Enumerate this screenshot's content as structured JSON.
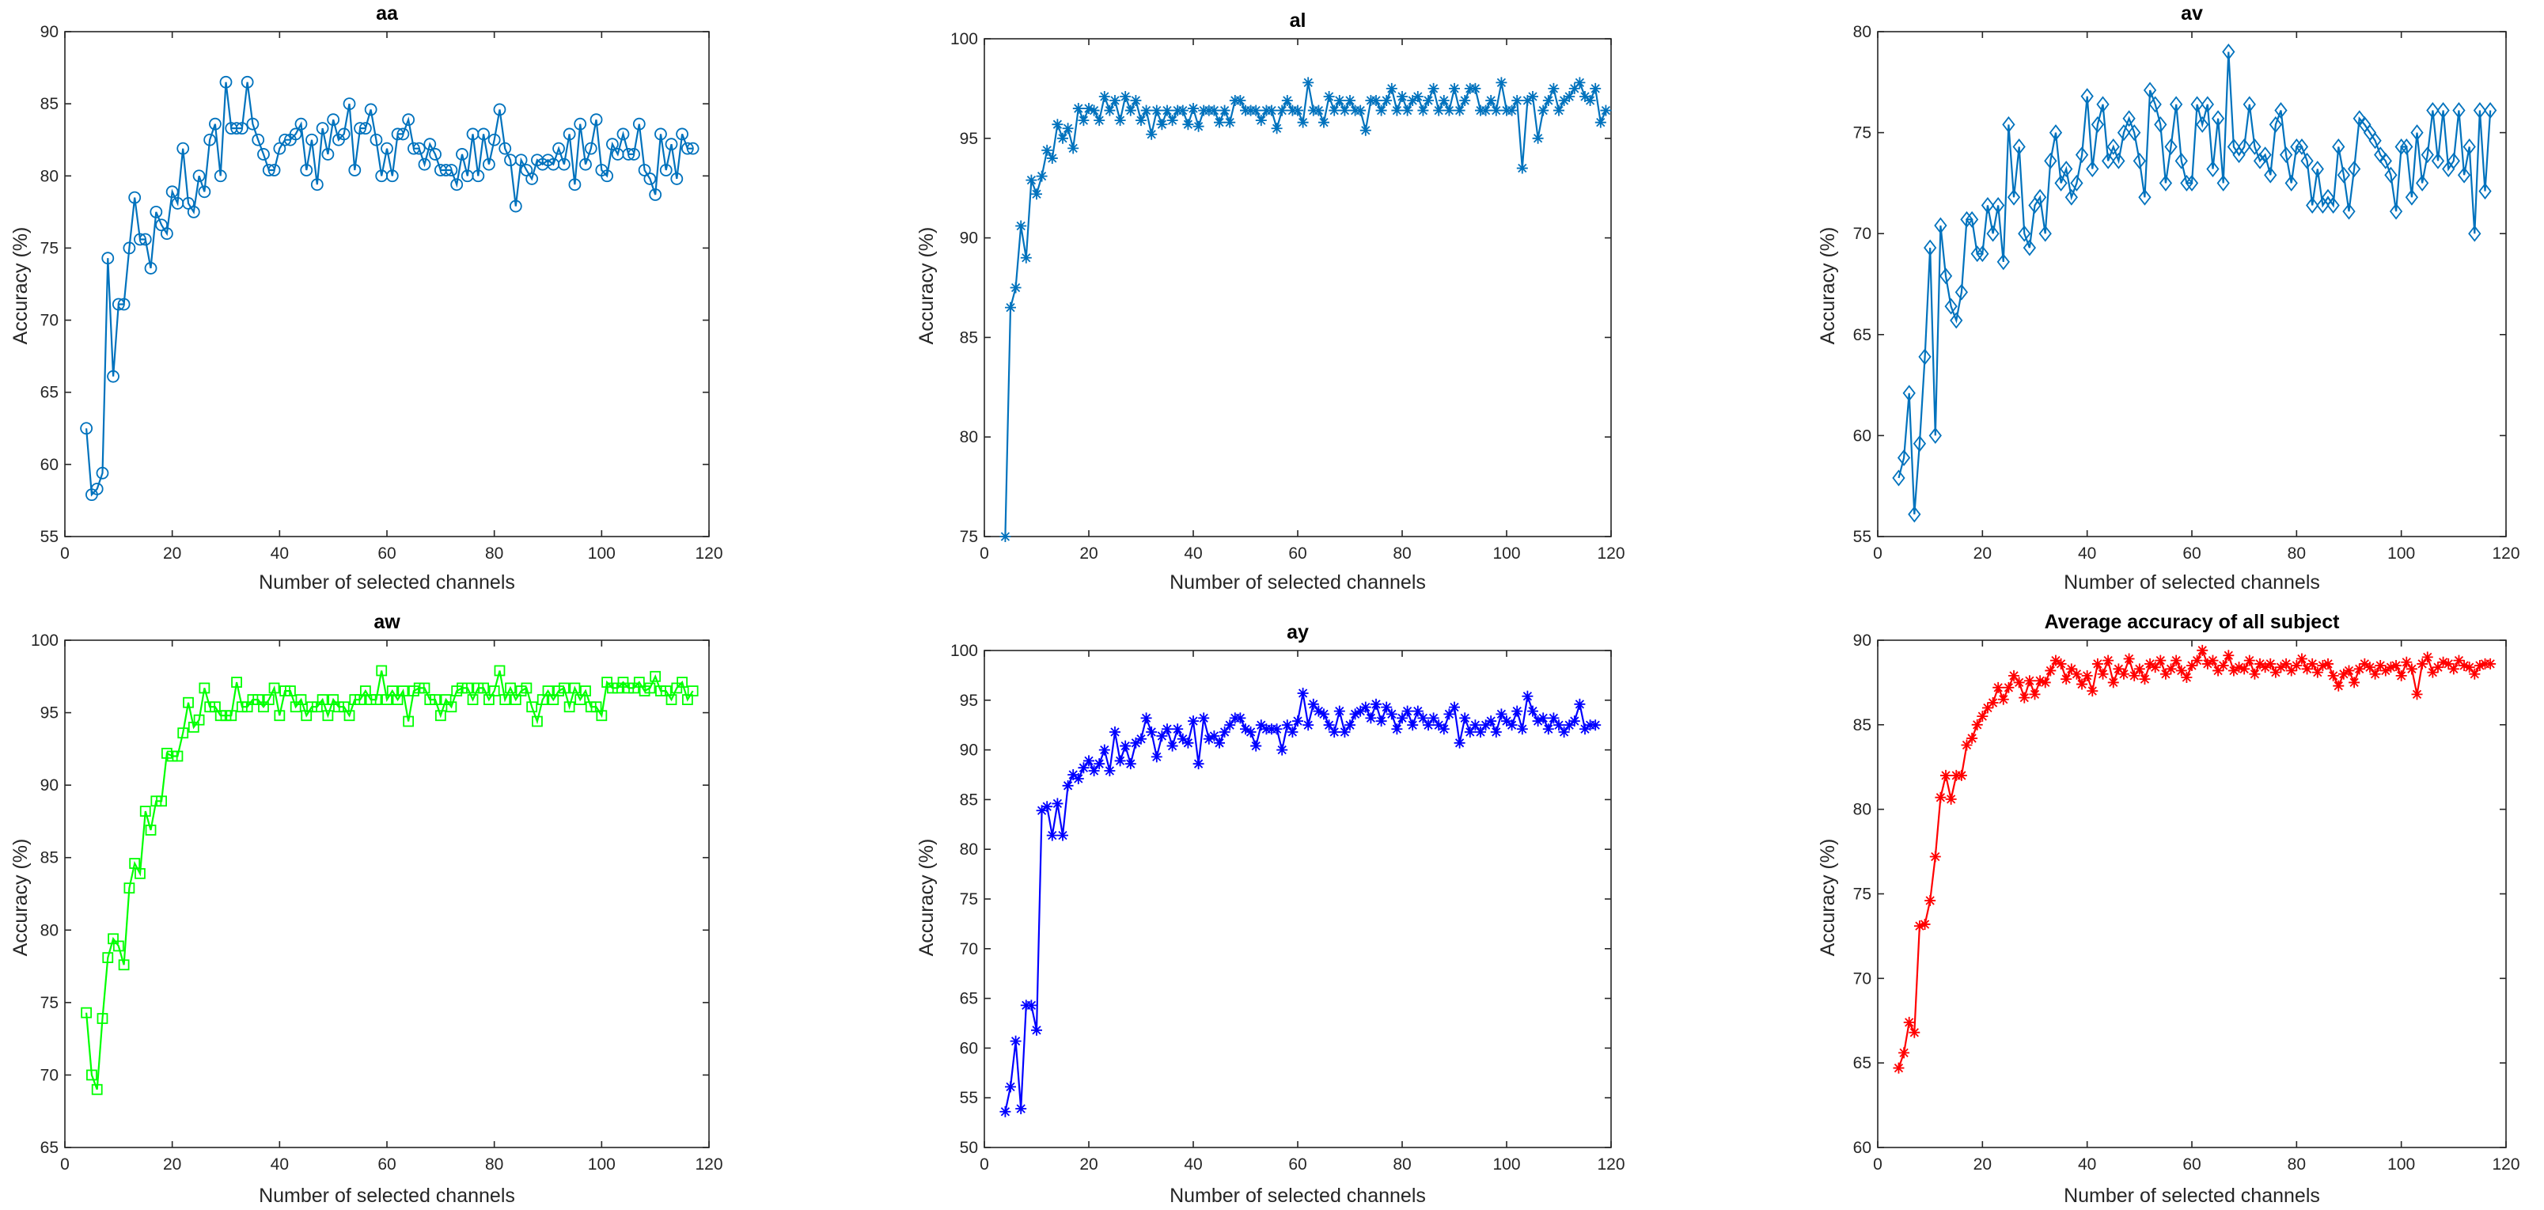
{
  "chart_data": [
    {
      "type": "line",
      "title": "aa",
      "xlabel": "Number of selected channels",
      "ylabel": "Accuracy (%)",
      "xlim": [
        0,
        120
      ],
      "ylim": [
        55,
        90
      ],
      "xticks": [
        0,
        20,
        40,
        60,
        80,
        100,
        120
      ],
      "yticks": [
        55,
        60,
        65,
        70,
        75,
        80,
        85,
        90
      ],
      "color": "#0072BD",
      "marker": "circle",
      "series": [
        {
          "name": "aa",
          "x_start": 4,
          "values": [
            62.5,
            57.9,
            58.3,
            59.4,
            74.3,
            66.1,
            71.1,
            71.1,
            75.0,
            78.5,
            75.6,
            75.6,
            73.6,
            77.5,
            76.6,
            76.0,
            78.9,
            78.1,
            81.9,
            78.1,
            77.5,
            80.0,
            78.9,
            82.5,
            83.6,
            80.0,
            86.5,
            83.3,
            83.3,
            83.3,
            86.5,
            83.6,
            82.5,
            81.5,
            80.4,
            80.4,
            81.9,
            82.5,
            82.5,
            82.9,
            83.6,
            80.4,
            82.5,
            79.4,
            83.3,
            81.5,
            83.9,
            82.5,
            82.9,
            85.0,
            80.4,
            83.3,
            83.3,
            84.6,
            82.5,
            80.0,
            81.9,
            80.0,
            82.9,
            82.9,
            83.9,
            81.9,
            81.9,
            80.8,
            82.2,
            81.5,
            80.4,
            80.4,
            80.4,
            79.4,
            81.5,
            80.0,
            82.9,
            80.0,
            82.9,
            80.8,
            82.5,
            84.6,
            81.9,
            81.1,
            77.9,
            81.1,
            80.4,
            79.8,
            81.1,
            80.8,
            81.1,
            80.8,
            81.9,
            80.8,
            82.9,
            79.4,
            83.6,
            80.8,
            81.9,
            83.9,
            80.4,
            80.0,
            82.2,
            81.5,
            82.9,
            81.5,
            81.5,
            83.6,
            80.4,
            79.8,
            78.7,
            82.9,
            80.4,
            82.2,
            79.8,
            82.9,
            81.9,
            81.9
          ]
        }
      ]
    },
    {
      "type": "line",
      "title": "al",
      "xlabel": "Number of selected channels",
      "ylabel": "Accuracy (%)",
      "xlim": [
        0,
        120
      ],
      "ylim": [
        75,
        100
      ],
      "xticks": [
        0,
        20,
        40,
        60,
        80,
        100,
        120
      ],
      "yticks": [
        75,
        80,
        85,
        90,
        95,
        100
      ],
      "color": "#0072BD",
      "marker": "asterisk",
      "series": [
        {
          "name": "al",
          "x_start": 4,
          "values": [
            75.0,
            86.5,
            87.5,
            90.6,
            89.0,
            92.9,
            92.2,
            93.1,
            94.4,
            94.0,
            95.7,
            95.0,
            95.5,
            94.5,
            96.5,
            95.9,
            96.5,
            96.4,
            95.9,
            97.1,
            96.4,
            96.9,
            95.9,
            97.1,
            96.4,
            96.9,
            95.9,
            96.4,
            95.2,
            96.4,
            95.7,
            96.4,
            95.9,
            96.4,
            96.4,
            95.7,
            96.5,
            95.6,
            96.4,
            96.4,
            96.4,
            95.8,
            96.4,
            95.8,
            96.9,
            96.9,
            96.4,
            96.4,
            96.4,
            95.9,
            96.4,
            96.4,
            95.5,
            96.4,
            96.9,
            96.4,
            96.4,
            95.8,
            97.8,
            96.4,
            96.4,
            95.8,
            97.1,
            96.4,
            96.9,
            96.4,
            96.9,
            96.4,
            96.4,
            95.4,
            96.9,
            96.9,
            96.4,
            96.9,
            97.5,
            96.4,
            97.1,
            96.4,
            96.9,
            97.1,
            96.4,
            96.9,
            97.5,
            96.4,
            96.9,
            96.4,
            97.5,
            96.4,
            96.9,
            97.5,
            97.5,
            96.4,
            96.4,
            96.9,
            96.4,
            97.8,
            96.4,
            96.4,
            96.9,
            93.5,
            96.9,
            97.1,
            95.0,
            96.4,
            96.9,
            97.5,
            96.4,
            96.9,
            97.1,
            97.5,
            97.8,
            97.1,
            96.9,
            97.5,
            95.8,
            96.4
          ]
        }
      ]
    },
    {
      "type": "line",
      "title": "av",
      "xlabel": "Number of selected channels",
      "ylabel": "Accuracy (%)",
      "xlim": [
        0,
        120
      ],
      "ylim": [
        55,
        80
      ],
      "xticks": [
        0,
        20,
        40,
        60,
        80,
        100,
        120
      ],
      "yticks": [
        55,
        60,
        65,
        70,
        75,
        80
      ],
      "color": "#0072BD",
      "marker": "diamond",
      "series": [
        {
          "name": "av",
          "x_start": 4,
          "values": [
            57.9,
            58.9,
            62.1,
            56.1,
            59.6,
            63.9,
            69.3,
            60.0,
            70.4,
            67.9,
            66.4,
            65.7,
            67.1,
            70.7,
            70.7,
            69.0,
            69.0,
            71.4,
            70.0,
            71.4,
            68.6,
            75.4,
            71.8,
            74.3,
            70.0,
            69.3,
            71.4,
            71.8,
            70.0,
            73.6,
            75.0,
            72.5,
            73.2,
            71.8,
            72.5,
            73.9,
            76.8,
            73.2,
            75.4,
            76.4,
            73.6,
            74.3,
            73.6,
            75.0,
            75.7,
            75.0,
            73.6,
            71.8,
            77.1,
            76.4,
            75.4,
            72.5,
            74.3,
            76.4,
            73.6,
            72.5,
            72.5,
            76.4,
            75.4,
            76.4,
            73.2,
            75.7,
            72.5,
            79.0,
            74.3,
            73.9,
            74.3,
            76.4,
            74.3,
            73.6,
            73.9,
            72.9,
            75.4,
            76.1,
            73.9,
            72.5,
            74.3,
            74.3,
            73.6,
            71.4,
            73.2,
            71.4,
            71.8,
            71.4,
            74.3,
            72.9,
            71.1,
            73.2,
            75.7,
            75.4,
            75.0,
            74.6,
            73.9,
            73.6,
            72.9,
            71.1,
            74.3,
            74.3,
            71.8,
            75.0,
            72.5,
            73.9,
            76.1,
            73.6,
            76.1,
            73.2,
            73.6,
            76.1,
            72.9,
            74.3,
            70.0,
            76.1,
            72.1,
            76.1
          ]
        }
      ]
    },
    {
      "type": "line",
      "title": "aw",
      "xlabel": "Number of selected channels",
      "ylabel": "Accuracy (%)",
      "xlim": [
        0,
        120
      ],
      "ylim": [
        65,
        100
      ],
      "xticks": [
        0,
        20,
        40,
        60,
        80,
        100,
        120
      ],
      "yticks": [
        65,
        70,
        75,
        80,
        85,
        90,
        95,
        100
      ],
      "color": "#00FF00",
      "marker": "square",
      "series": [
        {
          "name": "aw",
          "x_start": 4,
          "values": [
            74.3,
            70.0,
            69.0,
            73.9,
            78.1,
            79.4,
            78.9,
            77.6,
            82.9,
            84.6,
            83.9,
            88.2,
            86.9,
            88.9,
            88.9,
            92.2,
            92.0,
            92.0,
            93.6,
            95.7,
            94.0,
            94.5,
            96.7,
            95.4,
            95.4,
            94.8,
            94.8,
            94.8,
            97.1,
            95.4,
            95.4,
            95.9,
            95.9,
            95.4,
            95.9,
            96.7,
            94.8,
            96.5,
            96.5,
            95.4,
            95.9,
            94.8,
            95.4,
            95.4,
            95.9,
            94.8,
            95.9,
            95.4,
            95.4,
            94.8,
            95.9,
            95.9,
            96.5,
            95.9,
            95.9,
            97.9,
            95.9,
            96.5,
            95.9,
            96.5,
            94.4,
            96.5,
            96.7,
            96.7,
            95.9,
            95.9,
            94.8,
            95.9,
            95.4,
            96.5,
            96.7,
            96.7,
            95.9,
            96.7,
            96.7,
            95.9,
            96.5,
            97.9,
            95.9,
            96.7,
            95.9,
            96.5,
            96.7,
            95.4,
            94.4,
            95.9,
            96.5,
            95.9,
            96.5,
            96.7,
            95.4,
            96.7,
            95.9,
            96.5,
            95.4,
            95.4,
            94.8,
            97.1,
            96.7,
            96.7,
            97.1,
            96.7,
            96.7,
            97.1,
            96.5,
            96.7,
            97.5,
            96.5,
            96.5,
            95.9,
            96.7,
            97.1,
            95.9,
            96.5
          ]
        }
      ]
    },
    {
      "type": "line",
      "title": "ay",
      "xlabel": "Number of selected channels",
      "ylabel": "Accuracy (%)",
      "xlim": [
        0,
        120
      ],
      "ylim": [
        50,
        100
      ],
      "xticks": [
        0,
        20,
        40,
        60,
        80,
        100,
        120
      ],
      "yticks": [
        50,
        55,
        60,
        65,
        70,
        75,
        80,
        85,
        90,
        95,
        100
      ],
      "color": "#0000FF",
      "marker": "asterisk",
      "series": [
        {
          "name": "ay",
          "x_start": 4,
          "values": [
            53.6,
            56.1,
            60.7,
            53.9,
            64.3,
            64.3,
            61.8,
            83.9,
            84.3,
            81.4,
            84.6,
            81.4,
            86.4,
            87.5,
            87.1,
            88.2,
            88.9,
            87.9,
            88.6,
            90.0,
            87.9,
            91.8,
            88.9,
            90.4,
            88.6,
            90.7,
            91.1,
            93.2,
            91.8,
            89.3,
            91.4,
            92.1,
            90.4,
            92.1,
            91.1,
            90.7,
            92.9,
            88.6,
            93.2,
            91.1,
            91.4,
            90.7,
            91.8,
            92.5,
            93.2,
            93.2,
            92.1,
            91.8,
            90.4,
            92.5,
            92.1,
            92.1,
            92.1,
            90.0,
            92.5,
            91.8,
            92.9,
            95.7,
            92.5,
            94.6,
            93.9,
            93.6,
            92.5,
            91.8,
            93.9,
            91.8,
            92.5,
            93.6,
            93.9,
            94.3,
            93.2,
            94.6,
            92.9,
            94.3,
            93.6,
            92.1,
            93.2,
            93.9,
            92.5,
            93.9,
            93.2,
            92.5,
            93.2,
            92.5,
            92.1,
            93.6,
            94.3,
            90.7,
            93.2,
            91.8,
            92.5,
            91.8,
            92.5,
            92.9,
            91.8,
            93.6,
            92.9,
            92.5,
            93.9,
            92.1,
            95.4,
            93.9,
            92.9,
            93.2,
            92.1,
            93.2,
            92.5,
            91.8,
            92.5,
            92.9,
            94.6,
            92.1,
            92.5,
            92.5
          ]
        }
      ]
    },
    {
      "type": "line",
      "title": "Average accuracy of all subject",
      "xlabel": "Number of selected channels",
      "ylabel": "Accuracy (%)",
      "xlim": [
        0,
        120
      ],
      "ylim": [
        60,
        90
      ],
      "xticks": [
        0,
        20,
        40,
        60,
        80,
        100,
        120
      ],
      "yticks": [
        60,
        65,
        70,
        75,
        80,
        85,
        90
      ],
      "color": "#FF0000",
      "marker": "asterisk",
      "series": [
        {
          "name": "Average accuracy of all subject",
          "x_start": 4,
          "values": [
            64.7,
            65.6,
            67.4,
            66.8,
            73.1,
            73.2,
            74.6,
            77.2,
            80.7,
            82.0,
            80.6,
            82.0,
            82.0,
            83.8,
            84.2,
            85.0,
            85.5,
            86.0,
            86.3,
            87.2,
            86.5,
            87.2,
            87.9,
            87.5,
            86.6,
            87.6,
            86.8,
            87.6,
            87.5,
            88.2,
            88.8,
            88.6,
            87.7,
            88.3,
            88.0,
            87.4,
            87.9,
            87.0,
            88.6,
            88.0,
            88.8,
            87.5,
            88.3,
            88.0,
            88.9,
            87.9,
            88.3,
            87.7,
            88.6,
            88.4,
            88.8,
            88.0,
            88.3,
            88.8,
            88.2,
            87.8,
            88.5,
            88.8,
            89.4,
            88.6,
            88.8,
            88.2,
            88.5,
            89.1,
            88.2,
            88.4,
            88.3,
            88.8,
            88.0,
            88.6,
            88.4,
            88.6,
            88.1,
            88.4,
            88.6,
            88.2,
            88.5,
            88.9,
            88.3,
            88.6,
            88.1,
            88.5,
            88.6,
            87.9,
            87.3,
            88.0,
            88.2,
            87.5,
            88.3,
            88.6,
            88.4,
            88.0,
            88.5,
            88.2,
            88.4,
            88.5,
            87.9,
            88.7,
            88.3,
            86.8,
            88.6,
            89.0,
            88.1,
            88.4,
            88.7,
            88.6,
            88.3,
            88.8,
            88.5,
            88.4,
            88.0,
            88.5,
            88.6,
            88.6
          ]
        }
      ]
    }
  ]
}
